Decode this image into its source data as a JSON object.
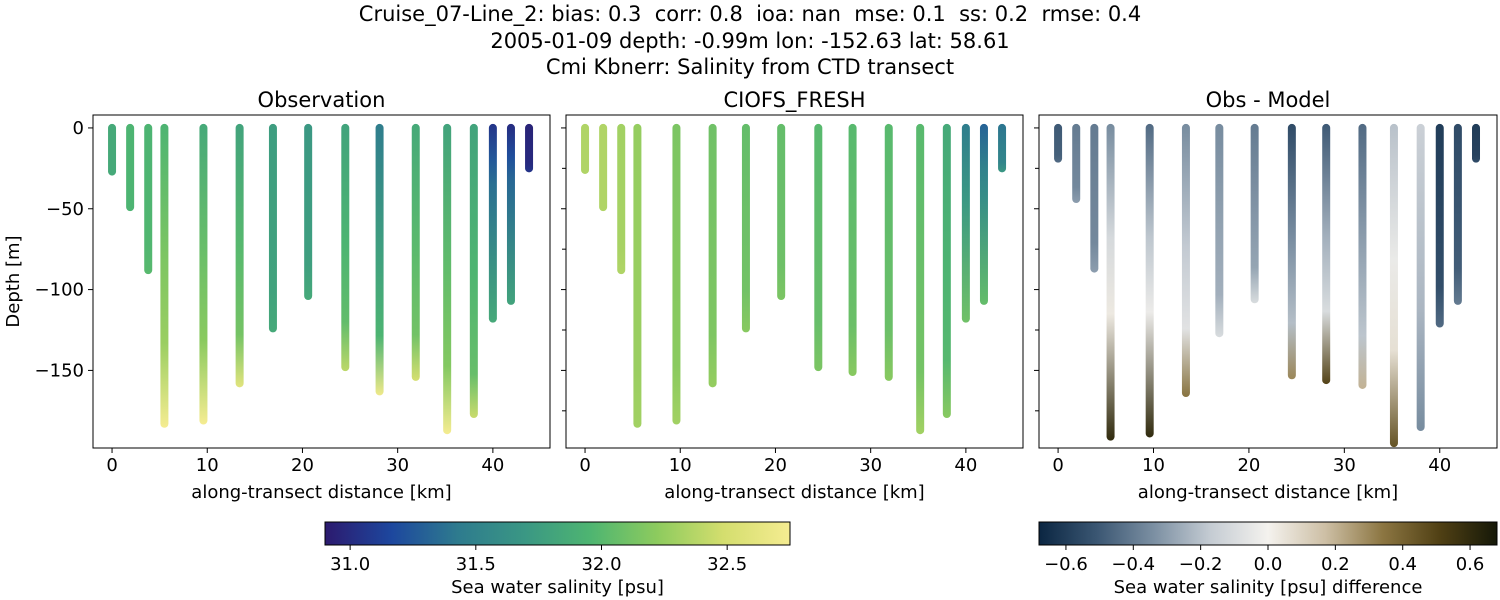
{
  "title_lines": [
    "Cruise_07-Line_2: bias: 0.3  corr: 0.8  ioa: nan  mse: 0.1  ss: 0.2  rmse: 0.4",
    "2005-01-09 depth: -0.99m lon: -152.63 lat: 58.61",
    "Cmi Kbnerr: Salinity from CTD transect"
  ],
  "chart_data": [
    {
      "type": "scatter",
      "title": "Observation",
      "xlabel": "along-transect distance [km]",
      "ylabel": "Depth [m]",
      "xlim": [
        -2,
        46
      ],
      "ylim": [
        -198,
        8
      ],
      "xticks": [
        0,
        10,
        20,
        30,
        40
      ],
      "xticklabels": [
        "0",
        "10",
        "20",
        "30",
        "40"
      ],
      "yticks": [
        0,
        -50,
        -100,
        -150
      ],
      "yticklabels": [
        "0",
        "−50",
        "−100",
        "−150"
      ],
      "colorscale": "salinity",
      "casts": [
        {
          "x": 0.0,
          "depth": 27,
          "surface": 31.85,
          "bottom": 31.85,
          "knee": 0.8
        },
        {
          "x": 1.9,
          "depth": 49,
          "surface": 31.95,
          "bottom": 31.95,
          "knee": 0.8
        },
        {
          "x": 3.8,
          "depth": 88,
          "surface": 31.95,
          "bottom": 32.0,
          "knee": 0.8
        },
        {
          "x": 5.5,
          "depth": 183,
          "surface": 31.95,
          "bottom": 32.75,
          "knee": 0.72
        },
        {
          "x": 9.6,
          "depth": 181,
          "surface": 31.85,
          "bottom": 32.75,
          "knee": 0.72
        },
        {
          "x": 13.4,
          "depth": 158,
          "surface": 31.8,
          "bottom": 32.6,
          "knee": 0.8
        },
        {
          "x": 16.9,
          "depth": 124,
          "surface": 31.75,
          "bottom": 31.85,
          "knee": 0.8
        },
        {
          "x": 20.6,
          "depth": 104,
          "surface": 31.7,
          "bottom": 31.85,
          "knee": 0.8
        },
        {
          "x": 24.5,
          "depth": 148,
          "surface": 31.8,
          "bottom": 32.4,
          "knee": 0.8
        },
        {
          "x": 28.1,
          "depth": 163,
          "surface": 31.45,
          "bottom": 32.7,
          "knee": 0.78
        },
        {
          "x": 31.9,
          "depth": 154,
          "surface": 31.85,
          "bottom": 32.5,
          "knee": 0.82
        },
        {
          "x": 35.2,
          "depth": 187,
          "surface": 31.8,
          "bottom": 32.75,
          "knee": 0.78
        },
        {
          "x": 38.0,
          "depth": 177,
          "surface": 31.8,
          "bottom": 32.45,
          "knee": 0.85
        },
        {
          "x": 40.0,
          "depth": 118,
          "surface": 31.05,
          "bottom": 31.85,
          "knee": 0.3
        },
        {
          "x": 41.9,
          "depth": 107,
          "surface": 31.0,
          "bottom": 31.8,
          "knee": 0.3
        },
        {
          "x": 43.8,
          "depth": 25,
          "surface": 30.95,
          "bottom": 31.05,
          "knee": 0.8
        }
      ]
    },
    {
      "type": "scatter",
      "title": "CIOFS_FRESH",
      "xlabel": "along-transect distance [km]",
      "ylabel": "",
      "xlim": [
        -2,
        46
      ],
      "ylim": [
        -198,
        8
      ],
      "xticks": [
        0,
        10,
        20,
        30,
        40
      ],
      "xticklabels": [
        "0",
        "10",
        "20",
        "30",
        "40"
      ],
      "yticks": [
        0,
        -50,
        -100,
        -150
      ],
      "yticklabels": [],
      "colorscale": "salinity",
      "casts": [
        {
          "x": 0.0,
          "depth": 26,
          "surface": 32.35,
          "bottom": 32.35,
          "knee": 0.8
        },
        {
          "x": 1.9,
          "depth": 49,
          "surface": 32.35,
          "bottom": 32.35,
          "knee": 0.8
        },
        {
          "x": 3.8,
          "depth": 88,
          "surface": 32.3,
          "bottom": 32.35,
          "knee": 0.8
        },
        {
          "x": 5.5,
          "depth": 183,
          "surface": 32.25,
          "bottom": 32.3,
          "knee": 0.8
        },
        {
          "x": 9.6,
          "depth": 181,
          "surface": 32.15,
          "bottom": 32.3,
          "knee": 0.8
        },
        {
          "x": 13.4,
          "depth": 158,
          "surface": 32.1,
          "bottom": 32.25,
          "knee": 0.8
        },
        {
          "x": 16.9,
          "depth": 124,
          "surface": 32.05,
          "bottom": 32.2,
          "knee": 0.8
        },
        {
          "x": 20.6,
          "depth": 104,
          "surface": 32.05,
          "bottom": 32.15,
          "knee": 0.8
        },
        {
          "x": 24.5,
          "depth": 148,
          "surface": 32.0,
          "bottom": 32.15,
          "knee": 0.8
        },
        {
          "x": 28.1,
          "depth": 151,
          "surface": 32.0,
          "bottom": 32.2,
          "knee": 0.8
        },
        {
          "x": 31.9,
          "depth": 154,
          "surface": 32.0,
          "bottom": 32.2,
          "knee": 0.8
        },
        {
          "x": 35.2,
          "depth": 187,
          "surface": 32.0,
          "bottom": 32.3,
          "knee": 0.8
        },
        {
          "x": 38.0,
          "depth": 177,
          "surface": 31.85,
          "bottom": 32.2,
          "knee": 0.8
        },
        {
          "x": 40.0,
          "depth": 118,
          "surface": 31.45,
          "bottom": 32.1,
          "knee": 0.4
        },
        {
          "x": 41.9,
          "depth": 107,
          "surface": 31.3,
          "bottom": 32.05,
          "knee": 0.4
        },
        {
          "x": 43.8,
          "depth": 25,
          "surface": 31.4,
          "bottom": 31.7,
          "knee": 0.8
        }
      ]
    },
    {
      "type": "scatter",
      "title": "Obs - Model",
      "xlabel": "along-transect distance [km]",
      "ylabel": "",
      "xlim": [
        -2,
        46
      ],
      "ylim": [
        -198,
        8
      ],
      "xticks": [
        0,
        10,
        20,
        30,
        40
      ],
      "xticklabels": [
        "0",
        "10",
        "20",
        "30",
        "40"
      ],
      "yticks": [
        0,
        -50,
        -100,
        -150
      ],
      "yticklabels": [],
      "colorscale": "difference",
      "casts": [
        {
          "x": 0.0,
          "depth": 19,
          "surface": -0.5,
          "bottom": -0.45,
          "knee": 0.8
        },
        {
          "x": 1.9,
          "depth": 44,
          "surface": -0.4,
          "bottom": -0.3,
          "knee": 0.8
        },
        {
          "x": 3.8,
          "depth": 87,
          "surface": -0.4,
          "bottom": -0.3,
          "knee": 0.8
        },
        {
          "x": 5.5,
          "depth": 191,
          "surface": -0.35,
          "bottom": 0.6,
          "knee": 0.6
        },
        {
          "x": 9.6,
          "depth": 189,
          "surface": -0.45,
          "bottom": 0.6,
          "knee": 0.6
        },
        {
          "x": 13.4,
          "depth": 164,
          "surface": -0.35,
          "bottom": 0.35,
          "knee": 0.75
        },
        {
          "x": 16.9,
          "depth": 127,
          "surface": -0.35,
          "bottom": -0.1,
          "knee": 0.8
        },
        {
          "x": 20.6,
          "depth": 106,
          "surface": -0.4,
          "bottom": -0.1,
          "knee": 0.8
        },
        {
          "x": 24.5,
          "depth": 153,
          "surface": -0.55,
          "bottom": 0.3,
          "knee": 0.78
        },
        {
          "x": 28.1,
          "depth": 156,
          "surface": -0.5,
          "bottom": 0.5,
          "knee": 0.72
        },
        {
          "x": 31.9,
          "depth": 159,
          "surface": -0.45,
          "bottom": 0.2,
          "knee": 0.8
        },
        {
          "x": 35.2,
          "depth": 195,
          "surface": -0.2,
          "bottom": 0.45,
          "knee": 0.7
        },
        {
          "x": 38.0,
          "depth": 185,
          "surface": -0.15,
          "bottom": -0.35,
          "knee": 0.6
        },
        {
          "x": 40.0,
          "depth": 121,
          "surface": -0.6,
          "bottom": -0.45,
          "knee": 0.8
        },
        {
          "x": 41.9,
          "depth": 107,
          "surface": -0.55,
          "bottom": -0.4,
          "knee": 0.8
        },
        {
          "x": 43.8,
          "depth": 19,
          "surface": -0.6,
          "bottom": -0.55,
          "knee": 0.8
        }
      ]
    }
  ],
  "colorbars": [
    {
      "label": "Sea water salinity [psu]",
      "range": [
        30.9,
        32.75
      ],
      "ticks": [
        31.0,
        31.5,
        32.0,
        32.5
      ],
      "ticklabels": [
        "31.0",
        "31.5",
        "32.0",
        "32.5"
      ],
      "colors": [
        "#2c1a6e",
        "#1d479e",
        "#2e7b8e",
        "#3a9784",
        "#4eb571",
        "#8dcb5e",
        "#d4de6e",
        "#f5ec91"
      ]
    },
    {
      "label": "Sea water salinity [psu] difference",
      "range": [
        -0.68,
        0.68
      ],
      "ticks": [
        -0.6,
        -0.4,
        -0.2,
        0.0,
        0.2,
        0.4,
        0.6
      ],
      "ticklabels": [
        "−0.6",
        "−0.4",
        "−0.2",
        "0.0",
        "0.2",
        "0.4",
        "0.6"
      ],
      "colors": [
        "#0b2642",
        "#3a5672",
        "#7b8fa2",
        "#c5ccd3",
        "#f4f2ee",
        "#cdbfa5",
        "#8c7642",
        "#504014",
        "#151808"
      ]
    }
  ]
}
